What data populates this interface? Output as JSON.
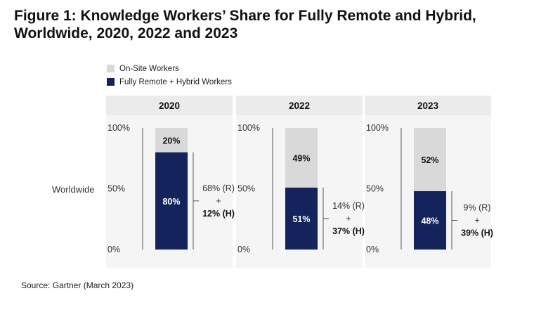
{
  "title_lines": [
    "Figure 1: Knowledge Workers’ Share for Fully Remote and Hybrid,",
    "Worldwide, 2020, 2022 and 2023"
  ],
  "legend": [
    {
      "label": "On-Site Workers",
      "color": "#d9d9d9"
    },
    {
      "label": "Fully Remote + Hybrid Workers",
      "color": "#14235c"
    }
  ],
  "row_label": "Worldwide",
  "source": "Source: Gartner (March 2023)",
  "colors": {
    "onsite": "#d9d9d9",
    "remote": "#14235c",
    "header_bg": "#ebebeb",
    "panel_bg": "#f5f5f5"
  },
  "chart_data": {
    "type": "bar",
    "stacked": true,
    "categories": [
      "2020",
      "2022",
      "2023"
    ],
    "yticks": [
      "0%",
      "50%",
      "100%"
    ],
    "ylim": [
      0,
      100
    ],
    "series": [
      {
        "name": "Fully Remote + Hybrid Workers",
        "values": [
          80,
          51,
          48
        ],
        "labels": [
          "80%",
          "51%",
          "48%"
        ]
      },
      {
        "name": "On-Site Workers",
        "values": [
          20,
          49,
          52
        ],
        "labels": [
          "20%",
          "49%",
          "52%"
        ]
      }
    ],
    "annotations": [
      {
        "remote": "68% (R)",
        "plus": "+",
        "hybrid": "12% (H)"
      },
      {
        "remote": "14% (R)",
        "plus": "+",
        "hybrid": "37% (H)"
      },
      {
        "remote": "9% (R)",
        "plus": "+",
        "hybrid": "39% (H)"
      }
    ]
  }
}
